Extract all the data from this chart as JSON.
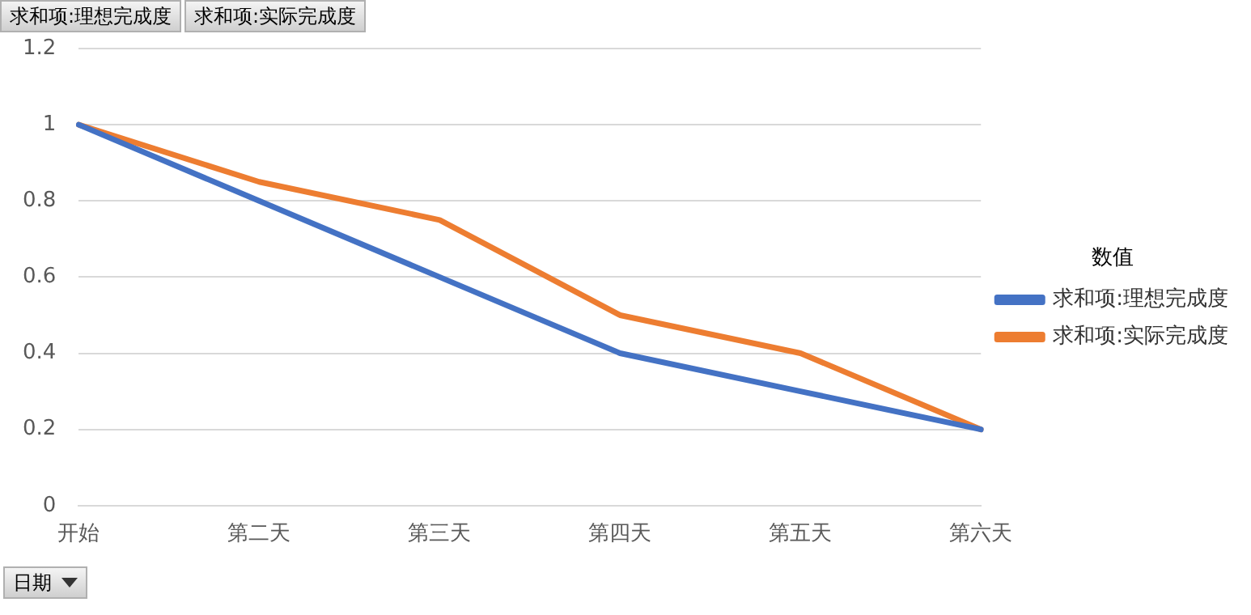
{
  "chart_data": {
    "type": "line",
    "legend_title": "数值",
    "xlabel": "日期",
    "annotations": [
      "求和项:理想完成度",
      "求和项:实际完成度"
    ],
    "categories": [
      "开始",
      "第二天",
      "第三天",
      "第四天",
      "第五天",
      "第六天"
    ],
    "series": [
      {
        "name": "求和项:理想完成度",
        "color": "#4472c4",
        "values": [
          1,
          0.8,
          0.6,
          0.4,
          0.3,
          0.2
        ]
      },
      {
        "name": "求和项:实际完成度",
        "color": "#ed7d31",
        "values": [
          1,
          0.85,
          0.75,
          0.5,
          0.4,
          0.2
        ]
      }
    ],
    "ylim": [
      0,
      1.2
    ],
    "yticks": [
      0,
      0.2,
      0.4,
      0.6,
      0.8,
      1,
      1.2
    ],
    "grid": "y",
    "legend": "right",
    "marker": "none",
    "line_style": "solid"
  }
}
